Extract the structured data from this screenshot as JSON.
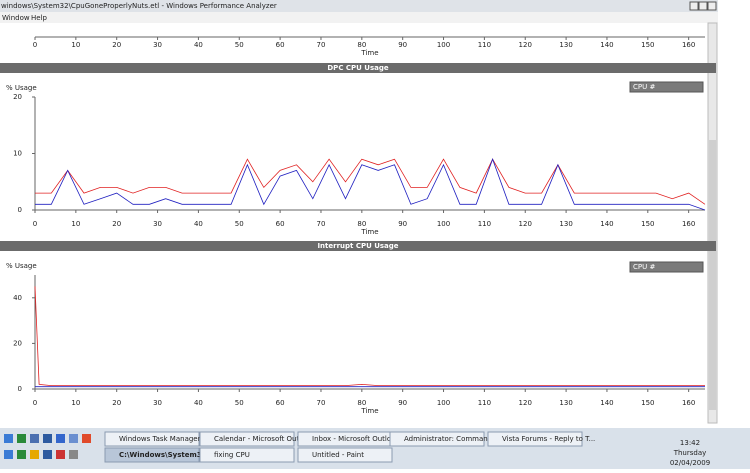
{
  "window": {
    "title": "windows\\System32\\CpuGoneProperlyNuts.etl - Windows Performance Analyzer",
    "menu": [
      "Window",
      "Help"
    ]
  },
  "timeline": {
    "xlabel": "Time",
    "xlim": [
      0,
      164
    ],
    "xticks": [
      0,
      10,
      20,
      30,
      40,
      50,
      60,
      70,
      80,
      90,
      100,
      110,
      120,
      130,
      140,
      150,
      160
    ]
  },
  "panels": [
    {
      "title": "DPC CPU Usage",
      "dropdown": "CPU #",
      "chart_data": {
        "type": "line",
        "ylabel": "% Usage",
        "xlabel": "Time",
        "x": [
          0,
          4,
          8,
          12,
          16,
          20,
          24,
          28,
          32,
          36,
          40,
          44,
          48,
          52,
          56,
          60,
          64,
          68,
          72,
          76,
          80,
          84,
          88,
          92,
          96,
          100,
          104,
          108,
          112,
          116,
          120,
          124,
          128,
          132,
          136,
          140,
          144,
          148,
          152,
          156,
          160,
          164
        ],
        "series": [
          {
            "name": "red",
            "color": "#e02020",
            "values": [
              3,
              3,
              7,
              3,
              4,
              4,
              3,
              4,
              4,
              3,
              3,
              3,
              3,
              9,
              4,
              7,
              8,
              5,
              9,
              5,
              9,
              8,
              9,
              4,
              4,
              9,
              4,
              3,
              9,
              4,
              3,
              3,
              8,
              3,
              3,
              3,
              3,
              3,
              3,
              2,
              3,
              1
            ]
          },
          {
            "name": "blue",
            "color": "#2020c0",
            "values": [
              1,
              1,
              7,
              1,
              2,
              3,
              1,
              1,
              2,
              1,
              1,
              1,
              1,
              8,
              1,
              6,
              7,
              2,
              8,
              2,
              8,
              7,
              8,
              1,
              2,
              8,
              1,
              1,
              9,
              1,
              1,
              1,
              8,
              1,
              1,
              1,
              1,
              1,
              1,
              1,
              1,
              0
            ]
          }
        ],
        "xlim": [
          0,
          164
        ],
        "xticks": [
          0,
          10,
          20,
          30,
          40,
          50,
          60,
          70,
          80,
          90,
          100,
          110,
          120,
          130,
          140,
          150,
          160
        ],
        "ylim": [
          0,
          20
        ],
        "yticks": [
          0,
          10,
          20
        ]
      }
    },
    {
      "title": "Interrupt CPU Usage",
      "dropdown": "CPU #",
      "chart_data": {
        "type": "line",
        "ylabel": "% Usage",
        "xlabel": "Time",
        "x": [
          0,
          1,
          4,
          8,
          12,
          16,
          20,
          24,
          28,
          32,
          36,
          40,
          44,
          48,
          52,
          56,
          60,
          64,
          68,
          72,
          76,
          80,
          84,
          88,
          92,
          96,
          100,
          104,
          108,
          112,
          116,
          120,
          124,
          128,
          132,
          136,
          140,
          144,
          148,
          152,
          156,
          160,
          164
        ],
        "series": [
          {
            "name": "red",
            "color": "#e02020",
            "values": [
              45,
              2,
              1.5,
              1.5,
              1.5,
              1.5,
              1.5,
              1.5,
              1.5,
              1.5,
              1.5,
              1.5,
              1.5,
              1.5,
              1.5,
              1.5,
              1.5,
              1.5,
              1.5,
              1.5,
              1.5,
              2,
              1.5,
              1.5,
              1.5,
              1.5,
              1.5,
              1.5,
              1.5,
              1.5,
              1.5,
              1.5,
              1.5,
              1.5,
              1.5,
              1.5,
              1.5,
              1.5,
              1.5,
              1.5,
              1.5,
              1.5,
              1.5
            ]
          },
          {
            "name": "blue",
            "color": "#2020c0",
            "values": [
              1,
              1,
              1,
              1,
              1,
              1,
              1,
              1,
              1,
              1,
              1,
              1,
              1,
              1,
              1,
              1,
              1,
              1,
              1,
              1,
              1,
              1,
              1,
              1,
              1,
              1,
              1,
              1,
              1,
              1,
              1,
              1,
              1,
              1,
              1,
              1,
              1,
              1,
              1,
              1,
              1,
              1,
              1
            ]
          }
        ],
        "xlim": [
          0,
          164
        ],
        "xticks": [
          0,
          10,
          20,
          30,
          40,
          50,
          60,
          70,
          80,
          90,
          100,
          110,
          120,
          130,
          140,
          150,
          160
        ],
        "ylim": [
          0,
          50
        ],
        "yticks": [
          0,
          20,
          40
        ]
      }
    }
  ],
  "taskbar": {
    "buttons": [
      "Windows Task Manager",
      "Calendar - Microsoft Outl...",
      "Inbox - Microsoft Outlook",
      "Administrator: Command...",
      "Vista Forums - Reply to T...",
      "C:\\Windows\\System3...",
      "fixing CPU",
      "Untitled - Paint"
    ],
    "clock": [
      "13:42",
      "Thursday",
      "02/04/2009"
    ]
  }
}
